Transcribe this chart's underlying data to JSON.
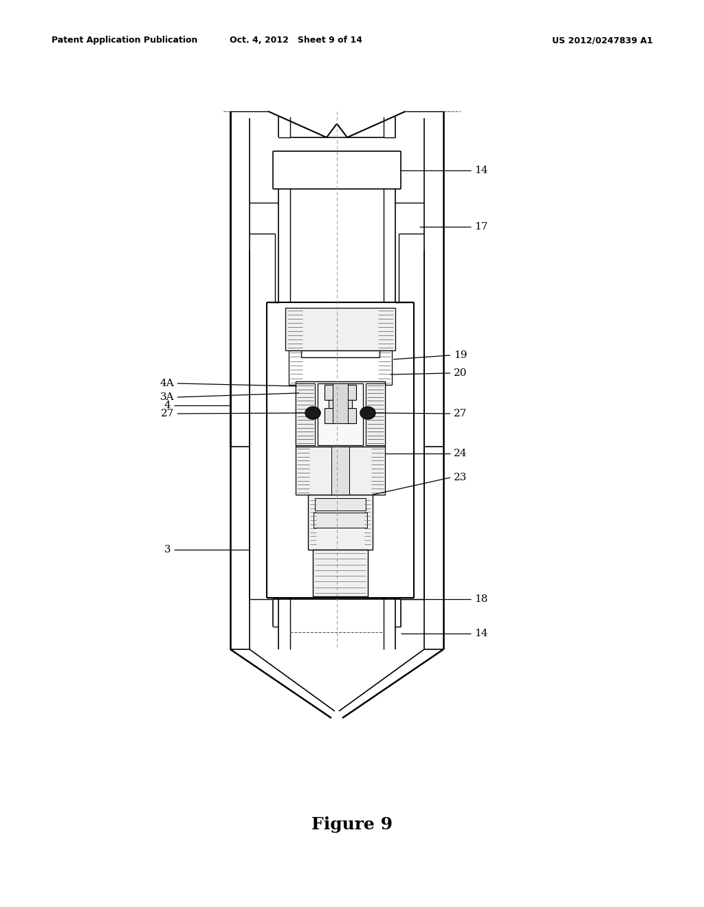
{
  "title": "Figure 9",
  "header_left": "Patent Application Publication",
  "header_mid": "Oct. 4, 2012   Sheet 9 of 14",
  "header_right": "US 2012/0247839 A1",
  "bg_color": "#ffffff",
  "fig_width": 10.24,
  "fig_height": 13.2,
  "dpi": 100
}
